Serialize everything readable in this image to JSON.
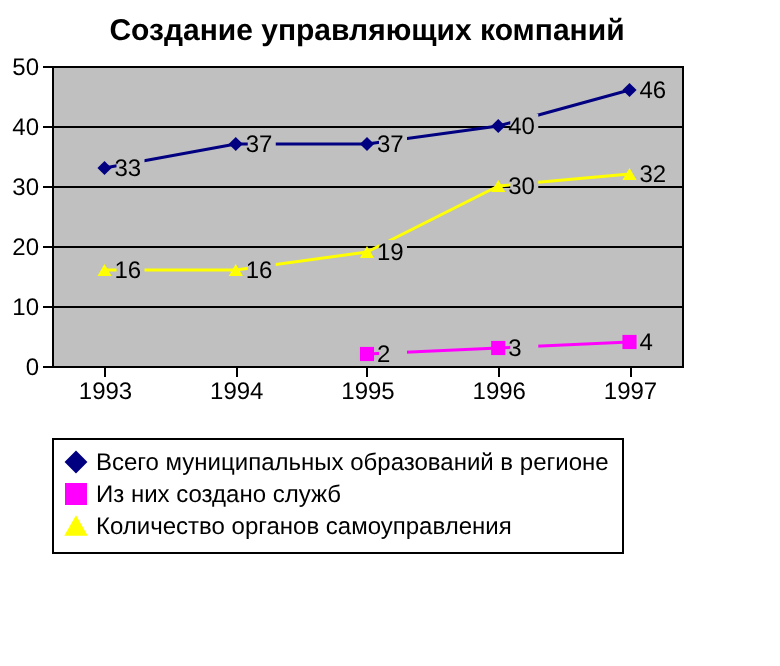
{
  "chart_data": {
    "type": "line",
    "title": "Создание управляющих компаний",
    "categories": [
      "1993",
      "1994",
      "1995",
      "1996",
      "1997"
    ],
    "series": [
      {
        "name": "Всего муниципальных образований в регионе",
        "color": "#000080",
        "marker": "diamond",
        "values": [
          33,
          37,
          37,
          40,
          46
        ]
      },
      {
        "name": "Из них создано служб",
        "color": "#ff00ff",
        "marker": "square",
        "values": [
          null,
          null,
          2,
          3,
          4
        ]
      },
      {
        "name": "Количество органов самоуправления",
        "color": "#ffff00",
        "marker": "triangle",
        "values": [
          16,
          16,
          19,
          30,
          32
        ]
      }
    ],
    "ylim": [
      0,
      50
    ],
    "yticks": [
      0,
      10,
      20,
      30,
      40,
      50
    ],
    "grid": "y",
    "legend": "bottom",
    "data_labels": true
  }
}
